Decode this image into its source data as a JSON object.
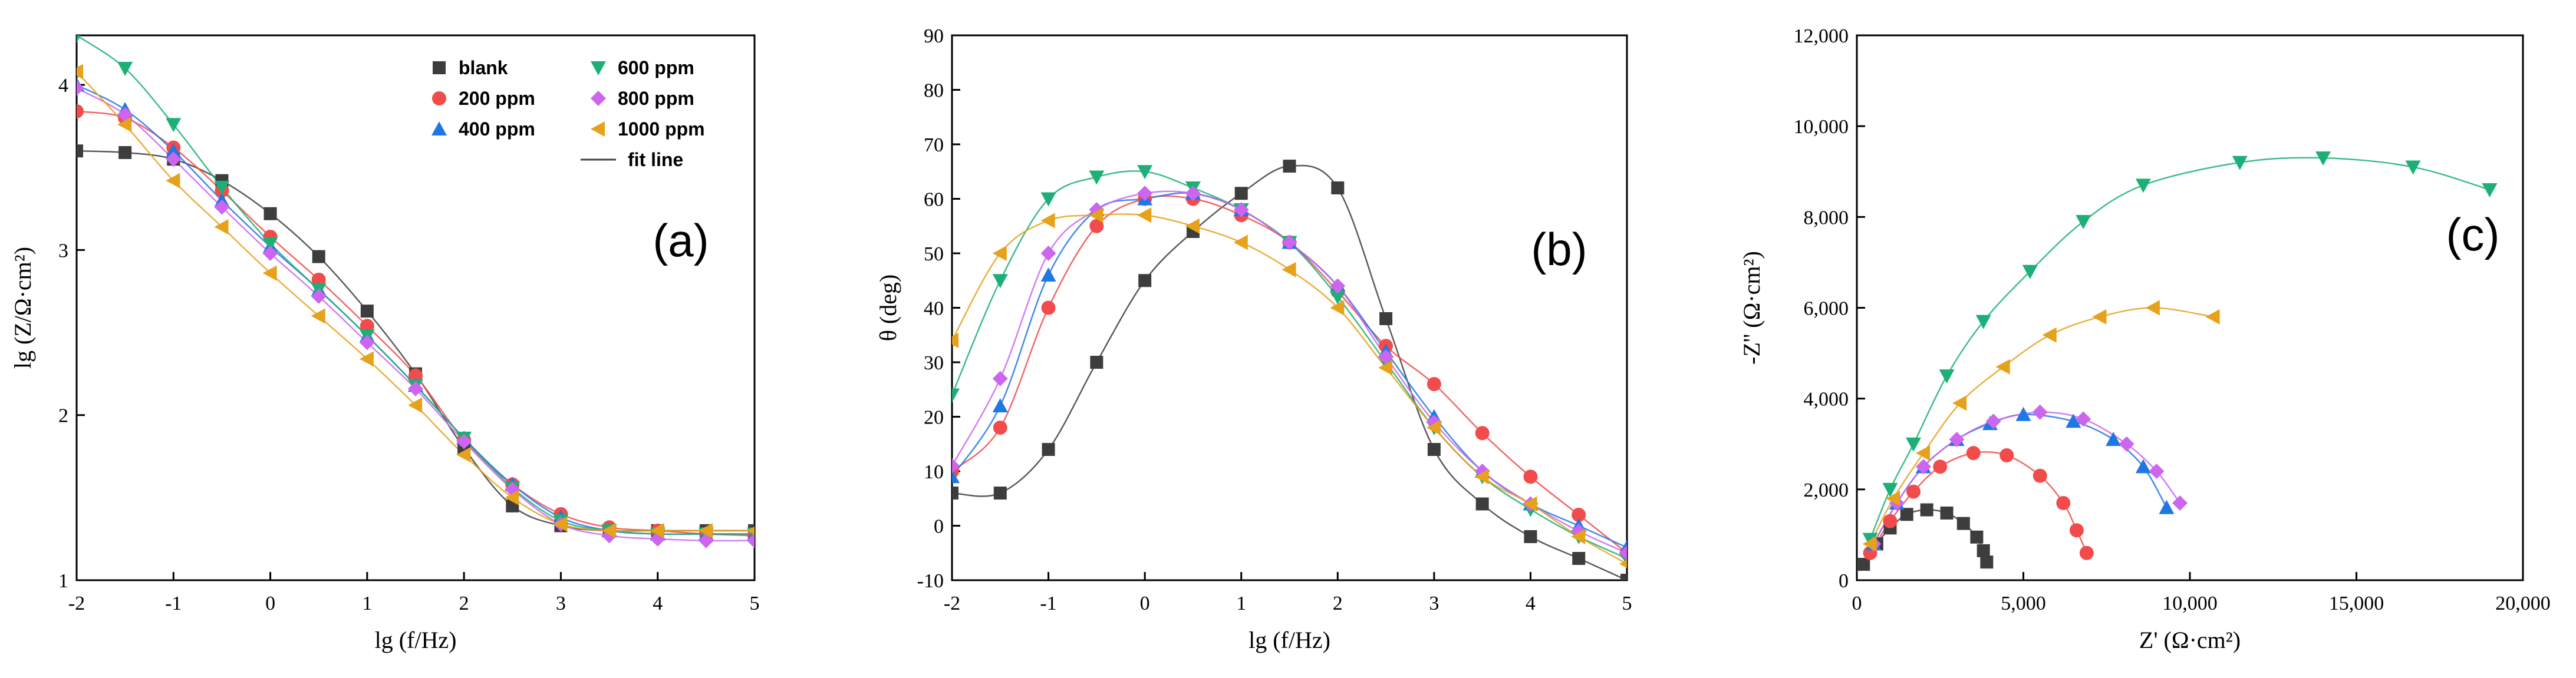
{
  "colors": {
    "blank": "#3d3d3d",
    "200 ppm": "#f24b4b",
    "400 ppm": "#1f77e6",
    "600 ppm": "#1cb077",
    "800 ppm": "#cc66ee",
    "1000 ppm": "#e6a21a",
    "fit": "#444444"
  },
  "chart_data": [
    {
      "type": "scatter",
      "panel_label": "(a)",
      "xlabel": "lg (f/Hz)",
      "ylabel": "lg (Z/Ω·cm²)",
      "xlim": [
        -2,
        5
      ],
      "ylim": [
        1,
        4.3
      ],
      "xticks": [
        "-2",
        "-1",
        "0",
        "1",
        "2",
        "3",
        "4",
        "5"
      ],
      "yticks": [
        "1",
        "2",
        "3",
        "4"
      ],
      "legend": {
        "position": "top-right",
        "entries": [
          "blank",
          "200 ppm",
          "400 ppm",
          "600 ppm",
          "800 ppm",
          "1000 ppm",
          "fit line"
        ]
      },
      "series": [
        {
          "name": "blank",
          "marker": "square",
          "x": [
            -2,
            -1.5,
            -1,
            -0.5,
            0,
            0.5,
            1,
            1.5,
            2,
            2.5,
            3,
            3.5,
            4,
            4.5,
            5
          ],
          "y": [
            3.6,
            3.59,
            3.55,
            3.42,
            3.22,
            2.96,
            2.63,
            2.25,
            1.8,
            1.45,
            1.33,
            1.3,
            1.3,
            1.3,
            1.3
          ]
        },
        {
          "name": "200 ppm",
          "marker": "circle",
          "x": [
            -2,
            -1.5,
            -1,
            -0.5,
            0,
            0.5,
            1,
            1.5,
            2,
            2.5,
            3,
            3.5,
            4,
            4.5,
            5
          ],
          "y": [
            3.84,
            3.8,
            3.62,
            3.36,
            3.08,
            2.82,
            2.54,
            2.24,
            1.85,
            1.58,
            1.4,
            1.32,
            1.3,
            1.28,
            1.27
          ]
        },
        {
          "name": "400 ppm",
          "marker": "triangle-up",
          "x": [
            -2,
            -1.5,
            -1,
            -0.5,
            0,
            0.5,
            1,
            1.5,
            2,
            2.5,
            3,
            3.5,
            4,
            4.5,
            5
          ],
          "y": [
            4.0,
            3.85,
            3.6,
            3.3,
            3.02,
            2.76,
            2.48,
            2.18,
            1.86,
            1.58,
            1.38,
            1.3,
            1.28,
            1.28,
            1.28
          ]
        },
        {
          "name": "600 ppm",
          "marker": "triangle-down",
          "x": [
            -2,
            -1.5,
            -1,
            -0.5,
            0,
            0.5,
            1,
            1.5,
            2,
            2.5,
            3,
            3.5,
            4,
            4.5,
            5
          ],
          "y": [
            4.3,
            4.1,
            3.76,
            3.38,
            3.04,
            2.76,
            2.48,
            2.18,
            1.86,
            1.56,
            1.36,
            1.3,
            1.28,
            1.28,
            1.28
          ]
        },
        {
          "name": "800 ppm",
          "marker": "diamond",
          "x": [
            -2,
            -1.5,
            -1,
            -0.5,
            0,
            0.5,
            1,
            1.5,
            2,
            2.5,
            3,
            3.5,
            4,
            4.5,
            5
          ],
          "y": [
            3.98,
            3.82,
            3.55,
            3.26,
            2.98,
            2.72,
            2.44,
            2.16,
            1.84,
            1.55,
            1.34,
            1.27,
            1.25,
            1.24,
            1.24
          ]
        },
        {
          "name": "1000 ppm",
          "marker": "triangle-left",
          "x": [
            -2,
            -1.5,
            -1,
            -0.5,
            0,
            0.5,
            1,
            1.5,
            2,
            2.5,
            3,
            3.5,
            4,
            4.5,
            5
          ],
          "y": [
            4.08,
            3.76,
            3.42,
            3.14,
            2.86,
            2.6,
            2.34,
            2.06,
            1.76,
            1.5,
            1.34,
            1.3,
            1.3,
            1.3,
            1.3
          ]
        }
      ]
    },
    {
      "type": "scatter",
      "panel_label": "(b)",
      "xlabel": "lg (f/Hz)",
      "ylabel": "θ (deg)",
      "xlim": [
        -2,
        5
      ],
      "ylim": [
        -10,
        90
      ],
      "xticks": [
        "-2",
        "-1",
        "0",
        "1",
        "2",
        "3",
        "4",
        "5"
      ],
      "yticks": [
        "-10",
        "0",
        "10",
        "20",
        "30",
        "40",
        "50",
        "60",
        "70",
        "80",
        "90"
      ],
      "series": [
        {
          "name": "blank",
          "marker": "square",
          "x": [
            -2,
            -1.5,
            -1,
            -0.5,
            0,
            0.5,
            1,
            1.5,
            2,
            2.5,
            3,
            3.5,
            4,
            4.5,
            5
          ],
          "y": [
            6,
            6,
            14,
            30,
            45,
            54,
            61,
            66,
            62,
            38,
            14,
            4,
            -2,
            -6,
            -10
          ]
        },
        {
          "name": "200 ppm",
          "marker": "circle",
          "x": [
            -2,
            -1.5,
            -1,
            -0.5,
            0,
            0.5,
            1,
            1.5,
            2,
            2.5,
            3,
            3.5,
            4,
            4.5,
            5
          ],
          "y": [
            10,
            18,
            40,
            55,
            60,
            60,
            57,
            52,
            43,
            33,
            26,
            17,
            9,
            2,
            -5
          ]
        },
        {
          "name": "400 ppm",
          "marker": "triangle-up",
          "x": [
            -2,
            -1.5,
            -1,
            -0.5,
            0,
            0.5,
            1,
            1.5,
            2,
            2.5,
            3,
            3.5,
            4,
            4.5,
            5
          ],
          "y": [
            9,
            22,
            46,
            58,
            60,
            61,
            58,
            52,
            44,
            32,
            20,
            10,
            4,
            0,
            -4
          ]
        },
        {
          "name": "600 ppm",
          "marker": "triangle-down",
          "x": [
            -2,
            -1.5,
            -1,
            -0.5,
            0,
            0.5,
            1,
            1.5,
            2,
            2.5,
            3,
            3.5,
            4,
            4.5,
            5
          ],
          "y": [
            24,
            45,
            60,
            64,
            65,
            62,
            58,
            52,
            42,
            30,
            18,
            9,
            3,
            -2,
            -6
          ]
        },
        {
          "name": "800 ppm",
          "marker": "diamond",
          "x": [
            -2,
            -1.5,
            -1,
            -0.5,
            0,
            0.5,
            1,
            1.5,
            2,
            2.5,
            3,
            3.5,
            4,
            4.5,
            5
          ],
          "y": [
            11,
            27,
            50,
            58,
            61,
            61,
            58,
            52,
            44,
            31,
            19,
            10,
            4,
            -1,
            -5
          ]
        },
        {
          "name": "1000 ppm",
          "marker": "triangle-left",
          "x": [
            -2,
            -1.5,
            -1,
            -0.5,
            0,
            0.5,
            1,
            1.5,
            2,
            2.5,
            3,
            3.5,
            4,
            4.5,
            5
          ],
          "y": [
            34,
            50,
            56,
            57,
            57,
            55,
            52,
            47,
            40,
            29,
            18,
            9,
            4,
            -2,
            -7
          ]
        }
      ]
    },
    {
      "type": "scatter",
      "panel_label": "(c)",
      "xlabel": "Z' (Ω·cm²)",
      "ylabel": "-Z'' (Ω·cm²)",
      "xlim": [
        0,
        20000
      ],
      "ylim": [
        0,
        12000
      ],
      "xticks": [
        "0",
        "5,000",
        "10,000",
        "15,000",
        "20,000"
      ],
      "yticks": [
        "0",
        "2,000",
        "4,000",
        "6,000",
        "8,000",
        "10,000",
        "12,000"
      ],
      "series": [
        {
          "name": "blank",
          "marker": "square",
          "x": [
            200,
            600,
            1000,
            1500,
            2100,
            2700,
            3200,
            3600,
            3800,
            3900
          ],
          "y": [
            350,
            800,
            1150,
            1450,
            1550,
            1480,
            1250,
            950,
            650,
            400
          ]
        },
        {
          "name": "200 ppm",
          "marker": "circle",
          "x": [
            400,
            1000,
            1700,
            2500,
            3500,
            4500,
            5500,
            6200,
            6600,
            6900
          ],
          "y": [
            600,
            1300,
            1950,
            2500,
            2800,
            2750,
            2300,
            1700,
            1100,
            600
          ]
        },
        {
          "name": "400 ppm",
          "marker": "triangle-up",
          "x": [
            500,
            1200,
            2000,
            3000,
            4000,
            5000,
            6500,
            7700,
            8600,
            9300
          ],
          "y": [
            800,
            1700,
            2500,
            3100,
            3450,
            3650,
            3500,
            3100,
            2500,
            1600
          ]
        },
        {
          "name": "600 ppm",
          "marker": "triangle-down",
          "x": [
            400,
            1000,
            1700,
            2700,
            3800,
            5200,
            6800,
            8600,
            11500,
            14000,
            16700,
            19000
          ],
          "y": [
            900,
            2000,
            3000,
            4500,
            5700,
            6800,
            7900,
            8700,
            9200,
            9300,
            9100,
            8600
          ]
        },
        {
          "name": "800 ppm",
          "marker": "diamond",
          "x": [
            500,
            1200,
            2000,
            3000,
            4100,
            5500,
            6800,
            8100,
            9000,
            9700
          ],
          "y": [
            800,
            1700,
            2500,
            3100,
            3500,
            3700,
            3550,
            3000,
            2400,
            1700
          ]
        },
        {
          "name": "1000 ppm",
          "marker": "triangle-left",
          "x": [
            400,
            1100,
            2000,
            3100,
            4400,
            5800,
            7300,
            8900,
            10700
          ],
          "y": [
            800,
            1800,
            2800,
            3900,
            4700,
            5400,
            5800,
            6000,
            5800
          ]
        }
      ]
    }
  ]
}
